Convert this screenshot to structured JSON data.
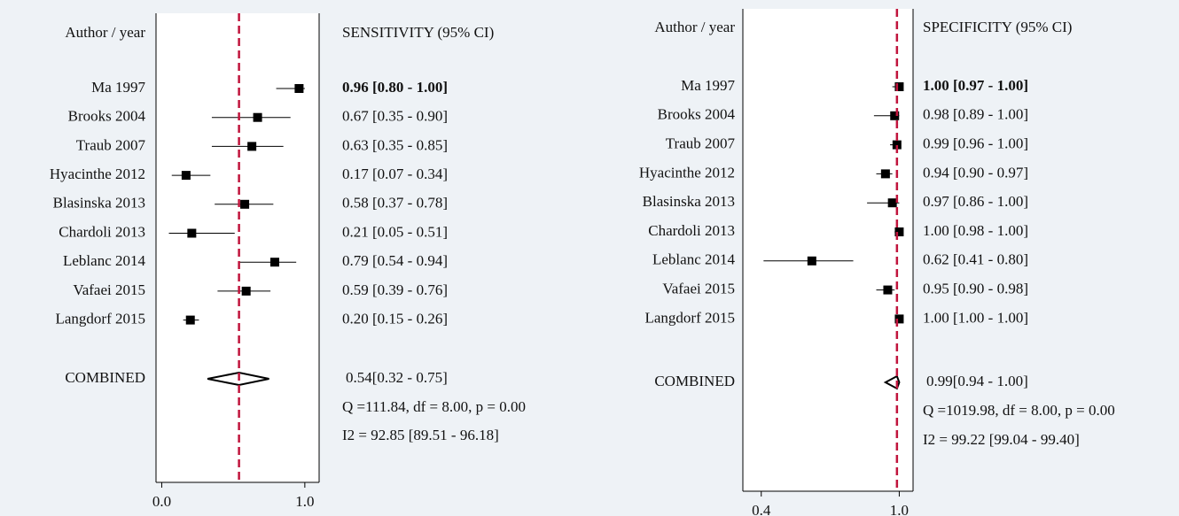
{
  "chart_data": [
    {
      "type": "forest",
      "label_header": "Author / year",
      "stat_header": "SENSITIVITY (95% CI)",
      "categories": [
        "Ma 1997",
        "Brooks 2004",
        "Traub 2007",
        "Hyacinthe 2012",
        "Blasinska 2013",
        "Chardoli 2013",
        "Leblanc 2014",
        "Vafaei 2015",
        "Langdorf 2015"
      ],
      "values": [
        0.96,
        0.67,
        0.63,
        0.17,
        0.58,
        0.21,
        0.79,
        0.59,
        0.2
      ],
      "lower": [
        0.8,
        0.35,
        0.35,
        0.07,
        0.37,
        0.05,
        0.54,
        0.39,
        0.15
      ],
      "upper": [
        1.0,
        0.9,
        0.85,
        0.34,
        0.78,
        0.51,
        0.94,
        0.76,
        0.26
      ],
      "value_labels": [
        "0.96 [0.80 - 1.00]",
        "0.67 [0.35 - 0.90]",
        "0.63 [0.35 - 0.85]",
        "0.17 [0.07 - 0.34]",
        "0.58 [0.37 - 0.78]",
        "0.21 [0.05 - 0.51]",
        "0.79 [0.54 - 0.94]",
        "0.59 [0.39 - 0.76]",
        "0.20 [0.15 - 0.26]"
      ],
      "combined": {
        "name": "COMBINED",
        "value": 0.54,
        "lower": 0.32,
        "upper": 0.75,
        "label": "0.54[0.32 - 0.75]"
      },
      "heterogeneity": [
        "Q =111.84, df = 8.00, p =  0.00",
        "I2 = 92.85 [89.51 - 96.18]"
      ],
      "xlim": [
        -0.04,
        1.1
      ],
      "xticks": [
        {
          "value": 0,
          "label": "0.0"
        },
        {
          "value": 1,
          "label": "1.0"
        }
      ],
      "reference_color": "#c0143c"
    },
    {
      "type": "forest",
      "label_header": "Author / year",
      "stat_header": "SPECIFICITY (95% CI)",
      "categories": [
        "Ma 1997",
        "Brooks 2004",
        "Traub 2007",
        "Hyacinthe 2012",
        "Blasinska 2013",
        "Chardoli 2013",
        "Leblanc 2014",
        "Vafaei 2015",
        "Langdorf 2015"
      ],
      "values": [
        1.0,
        0.98,
        0.99,
        0.94,
        0.97,
        1.0,
        0.62,
        0.95,
        1.0
      ],
      "lower": [
        0.97,
        0.89,
        0.96,
        0.9,
        0.86,
        0.98,
        0.41,
        0.9,
        1.0
      ],
      "upper": [
        1.0,
        1.0,
        1.0,
        0.97,
        1.0,
        1.0,
        0.8,
        0.98,
        1.0
      ],
      "value_labels": [
        "1.00 [0.97 - 1.00]",
        "0.98 [0.89 - 1.00]",
        "0.99 [0.96 - 1.00]",
        "0.94 [0.90 - 0.97]",
        "0.97 [0.86 - 1.00]",
        "1.00 [0.98 - 1.00]",
        "0.62 [0.41 - 0.80]",
        "0.95 [0.90 - 0.98]",
        "1.00 [1.00 - 1.00]"
      ],
      "combined": {
        "name": "COMBINED",
        "value": 0.99,
        "lower": 0.94,
        "upper": 1.0,
        "label": "0.99[0.94 - 1.00]"
      },
      "heterogeneity": [
        "Q =1019.98, df = 8.00, p =  0.00",
        "I2 = 99.22 [99.04 - 99.40]"
      ],
      "xlim": [
        0.32,
        1.06
      ],
      "xticks": [
        0.4,
        {
          "value": 1,
          "label": "1.0"
        }
      ],
      "reference_color": "#c0143c"
    }
  ]
}
